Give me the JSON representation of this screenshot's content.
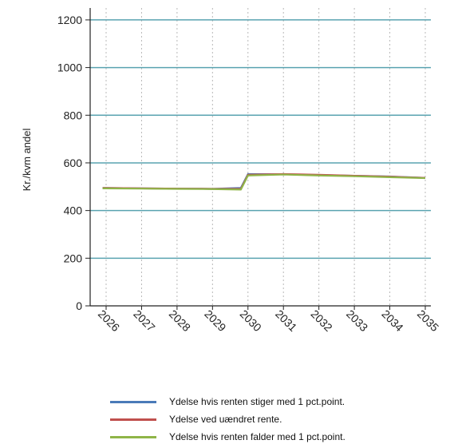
{
  "chart_data": {
    "type": "line",
    "title": "",
    "xlabel": "",
    "ylabel": "Kr./kvm andel",
    "x": [
      "2026",
      "2027",
      "2028",
      "2029",
      "2030",
      "2031",
      "2032",
      "2033",
      "2034",
      "2035"
    ],
    "ylim": [
      0,
      1250
    ],
    "yticks": [
      0,
      200,
      400,
      600,
      800,
      1000,
      1200
    ],
    "grid": {
      "horizontal": true,
      "vertical": true
    },
    "legend_position": "bottom",
    "series": [
      {
        "name": "Ydelse hvis renten stiger med 1 pct.point.",
        "color": "#4a7ab8",
        "x": [
          "2025.9",
          "2026",
          "2027",
          "2028",
          "2029",
          "2029.8",
          "2030",
          "2031",
          "2032",
          "2033",
          "2034",
          "2035"
        ],
        "values": [
          495,
          495,
          493,
          492,
          491,
          495,
          553,
          552,
          549,
          546,
          543,
          537
        ]
      },
      {
        "name": "Ydelse ved uændret rente.",
        "color": "#c0504d",
        "x": [
          "2025.9",
          "2026",
          "2027",
          "2028",
          "2029",
          "2029.8",
          "2030",
          "2031",
          "2032",
          "2033",
          "2034",
          "2035"
        ],
        "values": [
          495,
          495,
          493,
          492,
          491,
          491,
          550,
          553,
          550,
          546,
          542,
          537
        ]
      },
      {
        "name": "Ydelse hvis renten falder med 1 pct.point.",
        "color": "#8fb548",
        "x": [
          "2025.9",
          "2026",
          "2027",
          "2028",
          "2029",
          "2029.8",
          "2030",
          "2031",
          "2032",
          "2033",
          "2034",
          "2035"
        ],
        "values": [
          493,
          493,
          492,
          491,
          490,
          488,
          547,
          551,
          547,
          544,
          540,
          536
        ]
      }
    ]
  }
}
